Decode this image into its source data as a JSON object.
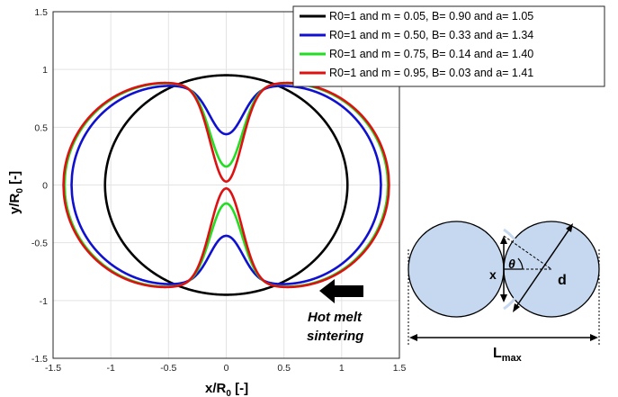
{
  "chart_data": {
    "type": "line",
    "title": "",
    "xlabel": "x/R",
    "xlabel_sub": "0",
    "xlabel_unit": " [-]",
    "ylabel": "y/R",
    "ylabel_sub": "0",
    "ylabel_unit": " [-]",
    "xlim": [
      -1.5,
      1.5
    ],
    "ylim": [
      -1.5,
      1.5
    ],
    "xticks": [
      "-1.5",
      "-1",
      "-0.5",
      "0",
      "0.5",
      "1",
      "1.5"
    ],
    "yticks": [
      "1.5",
      "1",
      "0.5",
      "0",
      "-0.5",
      "-1",
      "-1.5"
    ],
    "grid": true,
    "legend_position": "top-right",
    "series": [
      {
        "name": "R0=1 and m = 0.05, B= 0.90 and a= 1.05",
        "color": "#000000",
        "m": 0.05,
        "B": 0.9,
        "a": 1.05,
        "ymax": 0.95,
        "neck": 0.95
      },
      {
        "name": "R0=1 and m = 0.50, B= 0.33 and a= 1.34",
        "color": "#1010d0",
        "m": 0.5,
        "B": 0.33,
        "a": 1.34,
        "ymax": 0.71,
        "neck": 0.44
      },
      {
        "name": "R0=1 and m = 0.75, B= 0.14 and a= 1.40",
        "color": "#22dd22",
        "m": 0.75,
        "B": 0.14,
        "a": 1.4,
        "ymax": 0.71,
        "neck": 0.16
      },
      {
        "name": "R0=1 and m = 0.95, B= 0.03 and a= 1.41",
        "color": "#dd1111",
        "m": 0.95,
        "B": 0.03,
        "a": 1.41,
        "ymax": 0.71,
        "neck": 0.03
      }
    ]
  },
  "annotation": {
    "line1": "Hot melt",
    "line2": "sintering",
    "arrow_color": "#000000"
  },
  "diagram": {
    "fill_color": "#c5d8ef",
    "x_label": "x",
    "theta_label": "θ",
    "d_label": "d",
    "lmax_label": "L",
    "lmax_sub": "max"
  }
}
